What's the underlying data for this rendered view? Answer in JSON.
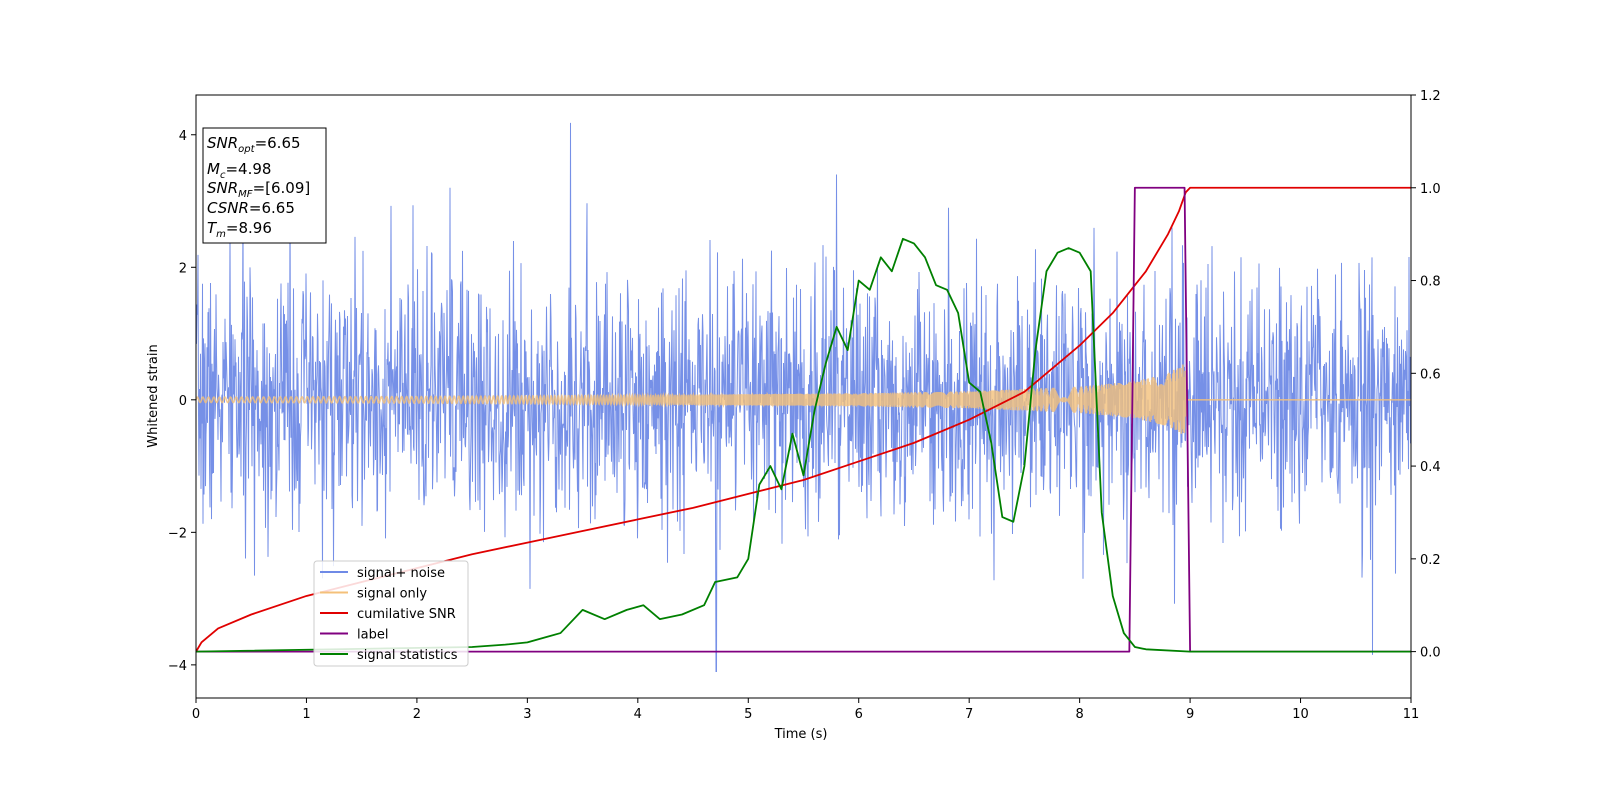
{
  "chart_data": {
    "type": "line",
    "title": "",
    "xlabel": "Time (s)",
    "ylabel": "Whitened strain",
    "xlim": [
      0,
      11
    ],
    "ylim_left": [
      -4.5,
      4.6
    ],
    "ylim_right": [
      -0.1,
      1.2
    ],
    "x_ticks": [
      0,
      1,
      2,
      3,
      4,
      5,
      6,
      7,
      8,
      9,
      10,
      11
    ],
    "y_ticks_left": [
      -4,
      -2,
      0,
      2,
      4
    ],
    "y_ticks_right": [
      0.0,
      0.2,
      0.4,
      0.6,
      0.8,
      1.0,
      1.2
    ],
    "y_tick_labels_right": [
      "0.0",
      "0.2",
      "0.4",
      "0.6",
      "0.8",
      "1.0",
      "1.2"
    ],
    "grid": false,
    "legend_position": "lower-left",
    "annotations": [
      {
        "name": "SNR",
        "sub": "opt",
        "value": "=6.65"
      },
      {
        "name": "M",
        "sub": "c",
        "value": "=4.98"
      },
      {
        "name": "SNR",
        "sub": "MF",
        "value": "=[6.09]"
      },
      {
        "name": "CSNR",
        "sub": "",
        "value": "=6.65"
      },
      {
        "name": "T",
        "sub": "m",
        "value": "=8.96"
      }
    ],
    "series": [
      {
        "name": "signal+ noise",
        "axis": "left",
        "color": "#6f8ae6",
        "noise": {
          "std": 0.95,
          "max_abs_approx": 4.2,
          "seed": 7
        },
        "notable_spikes": [
          [
            3.39,
            4.18
          ],
          [
            4.71,
            -4.1
          ],
          [
            10.65,
            -3.85
          ],
          [
            0.85,
            3.4
          ],
          [
            5.8,
            3.4
          ],
          [
            2.3,
            3.2
          ]
        ]
      },
      {
        "name": "signal only",
        "axis": "left",
        "color": "#f4c07a",
        "chirp_envelope": [
          [
            0,
            0.04
          ],
          [
            2,
            0.05
          ],
          [
            4,
            0.07
          ],
          [
            6,
            0.1
          ],
          [
            7,
            0.13
          ],
          [
            8,
            0.2
          ],
          [
            8.5,
            0.28
          ],
          [
            8.8,
            0.4
          ],
          [
            8.95,
            0.55
          ],
          [
            8.97,
            0.0
          ],
          [
            11,
            0.0
          ]
        ]
      },
      {
        "name": "cumilative SNR",
        "axis": "right",
        "color": "#e00000",
        "x": [
          0,
          0.05,
          0.2,
          0.5,
          1,
          1.5,
          2,
          2.5,
          3,
          3.5,
          4,
          4.5,
          5,
          5.5,
          6,
          6.5,
          7,
          7.5,
          8,
          8.3,
          8.6,
          8.8,
          8.9,
          8.96,
          9.0,
          11
        ],
        "y": [
          0.0,
          0.02,
          0.05,
          0.08,
          0.12,
          0.15,
          0.18,
          0.21,
          0.235,
          0.26,
          0.285,
          0.31,
          0.34,
          0.37,
          0.41,
          0.45,
          0.5,
          0.56,
          0.66,
          0.73,
          0.82,
          0.9,
          0.95,
          0.99,
          1.0,
          1.0
        ]
      },
      {
        "name": "label",
        "axis": "right",
        "color": "#800080",
        "x": [
          0,
          8.45,
          8.5,
          8.95,
          9.0,
          11
        ],
        "y": [
          0.0,
          0.0,
          1.0,
          1.0,
          0.0,
          0.0
        ]
      },
      {
        "name": "signal statistics",
        "axis": "right",
        "color": "#008000",
        "x": [
          0,
          2.5,
          2.8,
          3.0,
          3.3,
          3.5,
          3.7,
          3.9,
          4.05,
          4.2,
          4.4,
          4.6,
          4.7,
          4.9,
          5.0,
          5.1,
          5.2,
          5.3,
          5.4,
          5.5,
          5.6,
          5.7,
          5.8,
          5.9,
          6.0,
          6.1,
          6.2,
          6.3,
          6.4,
          6.5,
          6.6,
          6.7,
          6.8,
          6.9,
          7.0,
          7.1,
          7.2,
          7.3,
          7.4,
          7.5,
          7.6,
          7.7,
          7.8,
          7.9,
          8.0,
          8.1,
          8.2,
          8.3,
          8.4,
          8.5,
          8.6,
          9.0,
          11
        ],
        "y": [
          0.0,
          0.01,
          0.015,
          0.02,
          0.04,
          0.09,
          0.07,
          0.09,
          0.1,
          0.07,
          0.08,
          0.1,
          0.15,
          0.16,
          0.2,
          0.36,
          0.4,
          0.35,
          0.47,
          0.38,
          0.52,
          0.62,
          0.7,
          0.65,
          0.8,
          0.78,
          0.85,
          0.82,
          0.89,
          0.88,
          0.85,
          0.79,
          0.78,
          0.73,
          0.58,
          0.56,
          0.45,
          0.29,
          0.28,
          0.4,
          0.65,
          0.82,
          0.86,
          0.87,
          0.86,
          0.82,
          0.3,
          0.12,
          0.04,
          0.01,
          0.005,
          0.0,
          0.0
        ]
      }
    ]
  }
}
